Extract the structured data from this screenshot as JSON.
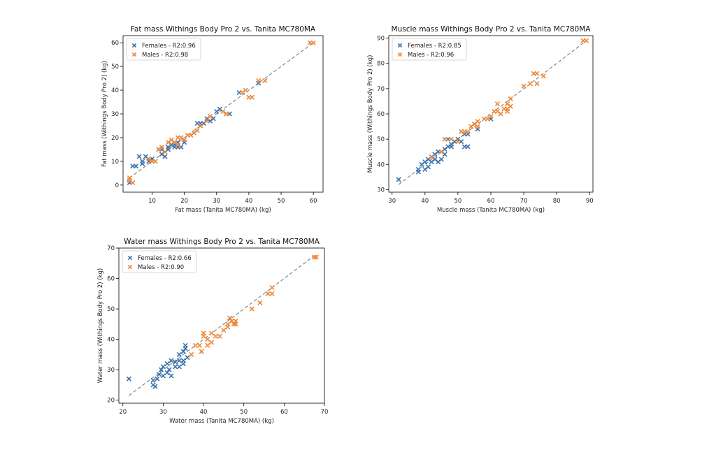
{
  "colors": {
    "females": "#3a72ad",
    "males": "#ef8533",
    "identity_line": "#888888"
  },
  "chart_data": [
    {
      "type": "scatter",
      "title": "Fat mass Withings Body Pro 2 vs. Tanita MC780MA",
      "xlabel": "Fat mass (Tanita MC780MA) (kg)",
      "ylabel": "Fat mass (Withings Body Pro 2) (kg)",
      "xlim": [
        1,
        63
      ],
      "ylim": [
        -3,
        63
      ],
      "xticks": [
        10,
        20,
        30,
        40,
        50,
        60
      ],
      "yticks": [
        0,
        10,
        20,
        30,
        40,
        50,
        60
      ],
      "legend_position": "top-left",
      "identity_line": [
        3,
        60
      ],
      "series": [
        {
          "name": "Females - R2:0.96",
          "color": "#3a72ad",
          "points": [
            [
              3,
              1
            ],
            [
              4,
              8
            ],
            [
              5,
              8
            ],
            [
              6,
              12
            ],
            [
              7,
              10
            ],
            [
              7,
              9
            ],
            [
              8,
              12
            ],
            [
              9,
              11
            ],
            [
              9,
              10
            ],
            [
              10,
              11
            ],
            [
              12,
              15
            ],
            [
              13,
              15
            ],
            [
              13,
              13
            ],
            [
              14,
              12
            ],
            [
              15,
              16
            ],
            [
              15,
              15
            ],
            [
              16,
              17
            ],
            [
              17,
              17
            ],
            [
              17,
              16
            ],
            [
              18,
              16
            ],
            [
              18,
              18
            ],
            [
              19,
              16
            ],
            [
              20,
              18
            ],
            [
              24,
              26
            ],
            [
              25,
              26
            ],
            [
              25,
              25
            ],
            [
              26,
              26
            ],
            [
              27,
              28
            ],
            [
              28,
              27
            ],
            [
              29,
              28
            ],
            [
              30,
              31
            ],
            [
              31,
              32
            ],
            [
              33,
              30
            ],
            [
              34,
              30
            ],
            [
              37,
              39
            ],
            [
              43,
              43
            ]
          ]
        },
        {
          "name": "Males - R2:0.98",
          "color": "#ef8533",
          "points": [
            [
              3,
              3
            ],
            [
              3,
              2
            ],
            [
              4,
              1
            ],
            [
              9,
              11
            ],
            [
              10,
              10
            ],
            [
              11,
              10
            ],
            [
              12,
              15
            ],
            [
              13,
              16
            ],
            [
              14,
              14
            ],
            [
              15,
              18
            ],
            [
              16,
              19
            ],
            [
              17,
              18
            ],
            [
              18,
              17
            ],
            [
              18,
              20
            ],
            [
              19,
              20
            ],
            [
              20,
              19
            ],
            [
              21,
              21
            ],
            [
              22,
              21
            ],
            [
              23,
              22
            ],
            [
              24,
              23
            ],
            [
              25,
              25
            ],
            [
              27,
              27
            ],
            [
              28,
              29
            ],
            [
              32,
              31
            ],
            [
              33,
              30
            ],
            [
              38,
              39
            ],
            [
              39,
              40
            ],
            [
              40,
              37
            ],
            [
              41,
              37
            ],
            [
              43,
              44
            ],
            [
              45,
              44
            ],
            [
              59,
              60
            ],
            [
              60,
              60
            ]
          ]
        }
      ]
    },
    {
      "type": "scatter",
      "title": "Muscle mass Withings Body Pro 2 vs. Tanita MC780MA",
      "xlabel": "Muscle mass (Tanita MC780MA) (kg)",
      "ylabel": "Muscle mass (Withings Body Pro 2) (kg)",
      "xlim": [
        29,
        91
      ],
      "ylim": [
        29,
        91
      ],
      "xticks": [
        30,
        40,
        50,
        60,
        70,
        80,
        90
      ],
      "yticks": [
        30,
        40,
        50,
        60,
        70,
        80,
        90
      ],
      "legend_position": "top-left",
      "identity_line": [
        32,
        89
      ],
      "series": [
        {
          "name": "Females - R2:0.85",
          "color": "#3a72ad",
          "points": [
            [
              32,
              34
            ],
            [
              38,
              37
            ],
            [
              38,
              38
            ],
            [
              39,
              40
            ],
            [
              40,
              41
            ],
            [
              40,
              38
            ],
            [
              41,
              39
            ],
            [
              41,
              42
            ],
            [
              42,
              43
            ],
            [
              42,
              41
            ],
            [
              43,
              44
            ],
            [
              43,
              42
            ],
            [
              44,
              45
            ],
            [
              44,
              41
            ],
            [
              45,
              45
            ],
            [
              45,
              42
            ],
            [
              46,
              46
            ],
            [
              46,
              44
            ],
            [
              47,
              47
            ],
            [
              47,
              50
            ],
            [
              48,
              48
            ],
            [
              48,
              47
            ],
            [
              49,
              49
            ],
            [
              50,
              50
            ],
            [
              51,
              49
            ],
            [
              52,
              52
            ],
            [
              52,
              47
            ],
            [
              53,
              47
            ],
            [
              53,
              52
            ],
            [
              56,
              54
            ],
            [
              60,
              58
            ]
          ]
        },
        {
          "name": "Males - R2:0.96",
          "color": "#ef8533",
          "points": [
            [
              42,
              43
            ],
            [
              45,
              45
            ],
            [
              46,
              50
            ],
            [
              48,
              50
            ],
            [
              50,
              49
            ],
            [
              51,
              53
            ],
            [
              52,
              53
            ],
            [
              53,
              53
            ],
            [
              54,
              55
            ],
            [
              55,
              56
            ],
            [
              56,
              57
            ],
            [
              56,
              55
            ],
            [
              58,
              58
            ],
            [
              59,
              58
            ],
            [
              60,
              59
            ],
            [
              61,
              61
            ],
            [
              62,
              64
            ],
            [
              62,
              61
            ],
            [
              63,
              60
            ],
            [
              64,
              62
            ],
            [
              65,
              62
            ],
            [
              65,
              61
            ],
            [
              65,
              64
            ],
            [
              66,
              63
            ],
            [
              66,
              66
            ],
            [
              70,
              71
            ],
            [
              72,
              72
            ],
            [
              73,
              76
            ],
            [
              74,
              72
            ],
            [
              74,
              76
            ],
            [
              76,
              75
            ],
            [
              88,
              89
            ],
            [
              89,
              89
            ]
          ]
        }
      ]
    },
    {
      "type": "scatter",
      "title": "Water mass Withings Body Pro 2 vs. Tanita MC780MA",
      "xlabel": "Water mass (Tanita MC780MA) (kg)",
      "ylabel": "Water mass (Withings Body Pro 2) (kg)",
      "xlim": [
        19,
        70
      ],
      "ylim": [
        19,
        70
      ],
      "xticks": [
        20,
        30,
        40,
        50,
        60,
        70
      ],
      "yticks": [
        20,
        30,
        40,
        50,
        60,
        70
      ],
      "legend_position": "top-left",
      "identity_line": [
        21.5,
        68
      ],
      "series": [
        {
          "name": "Females - R2:0.66",
          "color": "#3a72ad",
          "points": [
            [
              21.5,
              27
            ],
            [
              27.5,
              25
            ],
            [
              27.5,
              26.5
            ],
            [
              28,
              24.5
            ],
            [
              28.5,
              27
            ],
            [
              29,
              28.5
            ],
            [
              29.5,
              30
            ],
            [
              30,
              31
            ],
            [
              30,
              28
            ],
            [
              31,
              29
            ],
            [
              31,
              32
            ],
            [
              31.5,
              30
            ],
            [
              32,
              28
            ],
            [
              32,
              33
            ],
            [
              33,
              31
            ],
            [
              33,
              32.5
            ],
            [
              34,
              35
            ],
            [
              34,
              33
            ],
            [
              34,
              31
            ],
            [
              35,
              33
            ],
            [
              35,
              32
            ],
            [
              35,
              36
            ],
            [
              35.5,
              37
            ],
            [
              35.5,
              38
            ],
            [
              36,
              34
            ]
          ]
        },
        {
          "name": "Males - R2:0.90",
          "color": "#ef8533",
          "points": [
            [
              37,
              35
            ],
            [
              38,
              38
            ],
            [
              39,
              38
            ],
            [
              39.5,
              36
            ],
            [
              40,
              42
            ],
            [
              40,
              41
            ],
            [
              41,
              38
            ],
            [
              41,
              40
            ],
            [
              42,
              42
            ],
            [
              42,
              39
            ],
            [
              43,
              41
            ],
            [
              44,
              41
            ],
            [
              45,
              43
            ],
            [
              46,
              44
            ],
            [
              46,
              45
            ],
            [
              46.5,
              47
            ],
            [
              47,
              46
            ],
            [
              47.5,
              45
            ],
            [
              48,
              46
            ],
            [
              48,
              45
            ],
            [
              52,
              50
            ],
            [
              54,
              52
            ],
            [
              56,
              55
            ],
            [
              57,
              57
            ],
            [
              57,
              55
            ],
            [
              67.5,
              67
            ],
            [
              68,
              67
            ]
          ]
        }
      ]
    }
  ]
}
